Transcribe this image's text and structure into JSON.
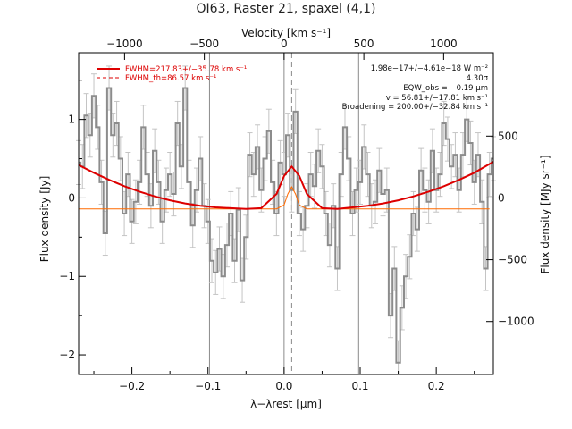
{
  "chart_data": {
    "type": "line",
    "title": "OI63, Raster 21, spaxel (4,1)",
    "xlabel": "λ−λrest [μm]",
    "ylabel": "Flux density [Jy]",
    "x2label": "Velocity [km s⁻¹]",
    "y2label": "Flux density [MJy sr⁻¹]",
    "xlim": [
      -0.27,
      0.275
    ],
    "ylim": [
      -2.25,
      1.85
    ],
    "xticks": [
      -0.2,
      -0.1,
      0.0,
      0.1,
      0.2
    ],
    "xtick_labels": [
      "−0.2",
      "−0.1",
      "0.0",
      "0.1",
      "0.2"
    ],
    "yticks": [
      -2,
      -1,
      0,
      1
    ],
    "ytick_labels": [
      "−2",
      "−1",
      "0",
      "1"
    ],
    "x2_per_um": 4770,
    "x2ticks": [
      -1000,
      -500,
      0,
      500,
      1000
    ],
    "x2tick_labels": [
      "−1000",
      "−500",
      "0",
      "500",
      "1000"
    ],
    "y2_per_jy": 635,
    "y2ticks": [
      -1000,
      -500,
      0,
      500
    ],
    "y2tick_labels": [
      "−1000",
      "−500",
      "0",
      "500"
    ],
    "vlines_solid": [
      -0.098,
      0.0,
      0.098
    ],
    "vline_dashed": 0.01,
    "legend": [
      {
        "label": "FWHM=217.83+/−35.78 km s⁻¹",
        "style": "solid"
      },
      {
        "label": "FWHM_th=86.57 km s⁻¹",
        "style": "dashed"
      }
    ],
    "annotations": [
      "1.98e−17+/−4.61e−18 W m⁻²",
      "4.30σ",
      "EQW_obs = −0.19 μm",
      "v = 56.81+/−17.81 km s⁻¹",
      "Broadening = 200.00+/−32.84 km s⁻¹"
    ],
    "series": [
      {
        "name": "",
        "x": [
          -0.27,
          -0.265,
          -0.26,
          -0.255,
          -0.25,
          -0.245,
          -0.24,
          -0.235,
          -0.23,
          -0.225,
          -0.22,
          -0.215,
          -0.21,
          -0.205,
          -0.2,
          -0.195,
          -0.19,
          -0.185,
          -0.18,
          -0.175,
          -0.17,
          -0.165,
          -0.16,
          -0.155,
          -0.15,
          -0.145,
          -0.14,
          -0.135,
          -0.13,
          -0.125,
          -0.12,
          -0.115,
          -0.11,
          -0.105,
          -0.1,
          -0.095,
          -0.09,
          -0.085,
          -0.08,
          -0.075,
          -0.07,
          -0.065,
          -0.06,
          -0.055,
          -0.05,
          -0.045,
          -0.04,
          -0.035,
          -0.03,
          -0.025,
          -0.02,
          -0.015,
          -0.01,
          -0.005,
          0.0,
          0.005,
          0.01,
          0.015,
          0.02,
          0.025,
          0.03,
          0.035,
          0.04,
          0.045,
          0.05,
          0.055,
          0.06,
          0.065,
          0.07,
          0.075,
          0.08,
          0.085,
          0.09,
          0.095,
          0.1,
          0.105,
          0.11,
          0.115,
          0.12,
          0.125,
          0.13,
          0.135,
          0.14,
          0.145,
          0.15,
          0.155,
          0.16,
          0.165,
          0.17,
          0.175,
          0.18,
          0.185,
          0.19,
          0.195,
          0.2,
          0.205,
          0.21,
          0.215,
          0.22,
          0.225,
          0.23,
          0.235,
          0.24,
          0.245,
          0.25,
          0.255,
          0.26,
          0.265,
          0.27,
          0.275
        ],
        "y": [
          0.45,
          0.4,
          1.05,
          0.8,
          1.3,
          0.9,
          0.2,
          -0.45,
          1.4,
          0.8,
          0.95,
          0.5,
          -0.2,
          0.3,
          -0.3,
          -0.05,
          0.2,
          0.9,
          0.3,
          -0.1,
          0.6,
          0.2,
          -0.3,
          0.1,
          0.3,
          0.05,
          0.95,
          0.4,
          1.4,
          0.2,
          -0.35,
          0.1,
          0.5,
          -0.1,
          -0.3,
          -0.8,
          -0.95,
          -0.65,
          -1.0,
          -0.6,
          -0.2,
          -0.8,
          -0.15,
          -1.05,
          -0.5,
          0.55,
          0.3,
          0.65,
          0.1,
          0.5,
          0.85,
          0.2,
          -0.2,
          0.45,
          0.3,
          0.8,
          0.1,
          1.1,
          -0.2,
          -0.4,
          -0.1,
          0.3,
          0.15,
          0.6,
          0.4,
          -0.2,
          -0.6,
          -0.1,
          -0.9,
          0.3,
          0.9,
          0.5,
          -0.2,
          0.1,
          0.2,
          0.65,
          0.3,
          -0.1,
          -0.05,
          0.35,
          0.05,
          0.1,
          -1.5,
          -0.9,
          -2.1,
          -1.4,
          -1.0,
          -0.75,
          -0.2,
          -0.4,
          0.35,
          0.1,
          -0.05,
          0.6,
          0.1,
          0.3,
          0.95,
          0.75,
          0.4,
          0.55,
          0.1,
          0.55,
          1.0,
          0.7,
          0.2,
          0.55,
          -0.05,
          -0.9,
          0.3,
          0.5
        ]
      },
      {
        "name": "",
        "x": [
          -0.27,
          -0.25,
          -0.23,
          -0.21,
          -0.19,
          -0.17,
          -0.15,
          -0.13,
          -0.11,
          -0.09,
          -0.07,
          -0.05,
          -0.03,
          -0.01,
          0.0,
          0.01,
          0.02,
          0.03,
          0.05,
          0.07,
          0.09,
          0.11,
          0.13,
          0.15,
          0.17,
          0.19,
          0.21,
          0.23,
          0.25,
          0.275
        ],
        "y": [
          0.42,
          0.32,
          0.23,
          0.15,
          0.08,
          0.02,
          -0.03,
          -0.07,
          -0.1,
          -0.12,
          -0.13,
          -0.14,
          -0.13,
          0.05,
          0.28,
          0.4,
          0.28,
          0.05,
          -0.13,
          -0.14,
          -0.12,
          -0.1,
          -0.07,
          -0.03,
          0.02,
          0.08,
          0.15,
          0.23,
          0.32,
          0.46
        ]
      },
      {
        "name": "",
        "x": [
          -0.27,
          -0.05,
          -0.01,
          0.0,
          0.005,
          0.01,
          0.015,
          0.02,
          0.03,
          0.27
        ],
        "y": [
          -0.14,
          -0.14,
          -0.14,
          -0.09,
          0.05,
          0.14,
          0.05,
          -0.09,
          -0.14,
          -0.14
        ]
      }
    ]
  }
}
